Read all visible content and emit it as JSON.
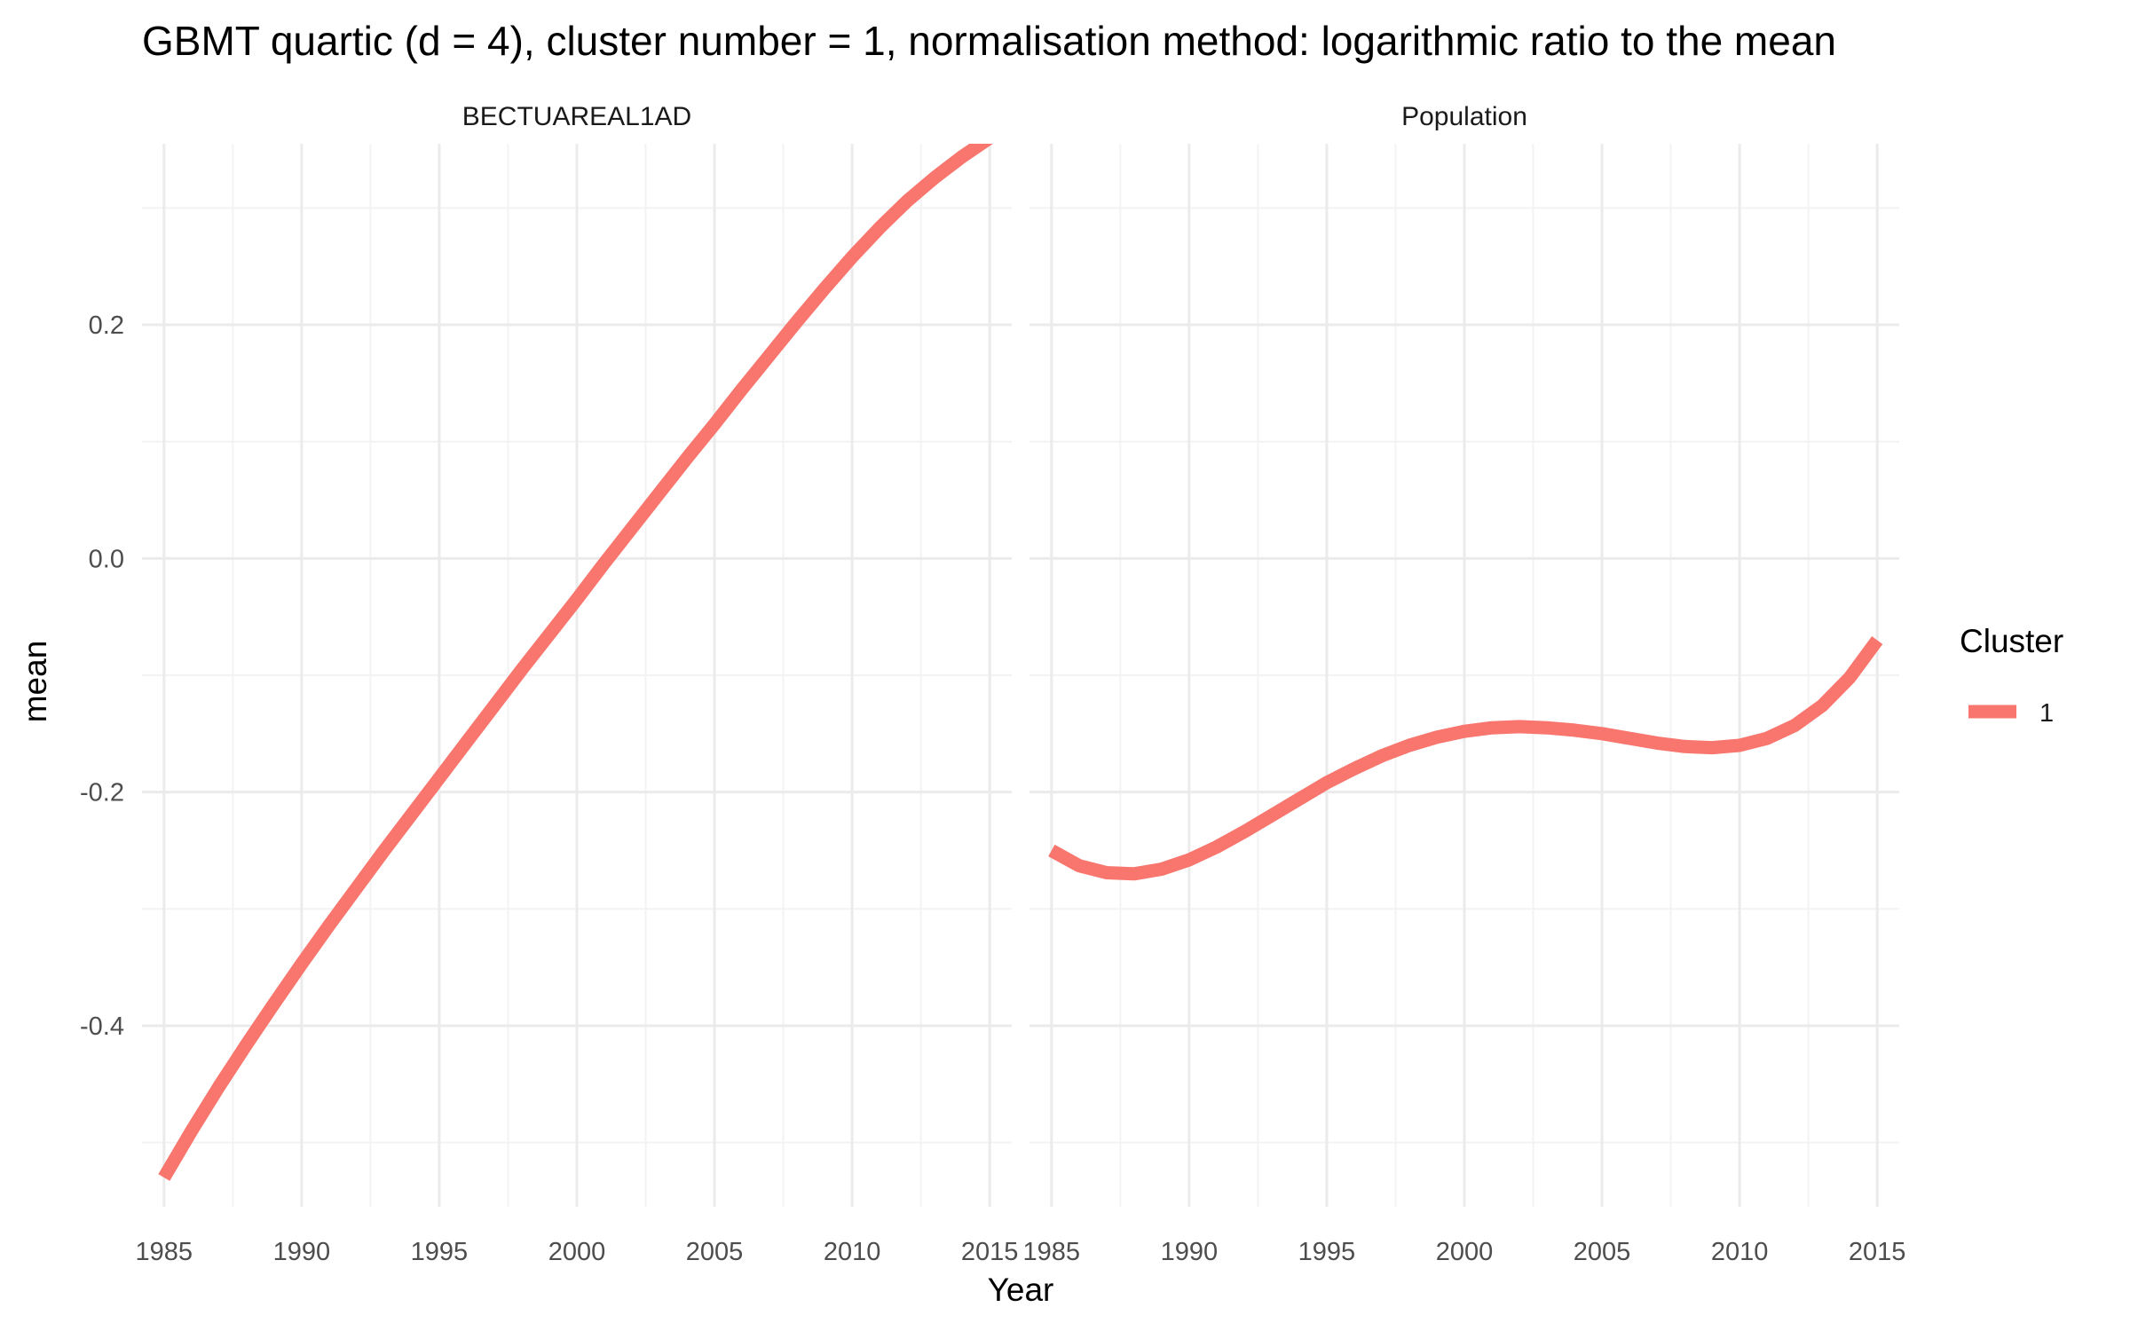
{
  "chart_data": {
    "type": "line",
    "title": "GBMT quartic (d = 4), cluster number = 1, normalisation method: logarithmic ratio to the mean",
    "xlabel": "Year",
    "ylabel": "mean",
    "xlim": [
      1984.2,
      2015.8
    ],
    "ylim": [
      -0.555,
      0.355
    ],
    "x_ticks": [
      1985,
      1990,
      1995,
      2000,
      2005,
      2010,
      2015
    ],
    "y_ticks": [
      -0.4,
      -0.2,
      0.0,
      0.2
    ],
    "y_tick_labels": [
      "-0.4",
      "-0.2",
      "0.0",
      "0.2"
    ],
    "grid": true,
    "legend": {
      "title": "Cluster",
      "position": "right",
      "entries": [
        {
          "label": "1",
          "color": "#F8766D"
        }
      ]
    },
    "colors": {
      "series": "#F8766D"
    },
    "panels": [
      {
        "strip": "BECTUAREAL1AD",
        "series": [
          {
            "name": "1",
            "x": [
              1985,
              1986,
              1987,
              1988,
              1989,
              1990,
              1991,
              1992,
              1993,
              1994,
              1995,
              1996,
              1997,
              1998,
              1999,
              2000,
              2001,
              2002,
              2003,
              2004,
              2005,
              2006,
              2007,
              2008,
              2009,
              2010,
              2011,
              2012,
              2013,
              2014,
              2015
            ],
            "y": [
              -0.53,
              -0.49,
              -0.452,
              -0.416,
              -0.381,
              -0.347,
              -0.314,
              -0.282,
              -0.25,
              -0.219,
              -0.188,
              -0.157,
              -0.126,
              -0.095,
              -0.065,
              -0.035,
              -0.004,
              0.026,
              0.056,
              0.086,
              0.115,
              0.145,
              0.174,
              0.203,
              0.231,
              0.258,
              0.283,
              0.306,
              0.326,
              0.344,
              0.36
            ]
          }
        ]
      },
      {
        "strip": "Population",
        "series": [
          {
            "name": "1",
            "x": [
              1985,
              1986,
              1987,
              1988,
              1989,
              1990,
              1991,
              1992,
              1993,
              1994,
              1995,
              1996,
              1997,
              1998,
              1999,
              2000,
              2001,
              2002,
              2003,
              2004,
              2005,
              2006,
              2007,
              2008,
              2009,
              2010,
              2011,
              2012,
              2013,
              2014,
              2015
            ],
            "y": [
              -0.25,
              -0.263,
              -0.269,
              -0.27,
              -0.266,
              -0.258,
              -0.247,
              -0.234,
              -0.22,
              -0.206,
              -0.192,
              -0.18,
              -0.169,
              -0.16,
              -0.153,
              -0.148,
              -0.145,
              -0.144,
              -0.145,
              -0.147,
              -0.15,
              -0.154,
              -0.158,
              -0.161,
              -0.162,
              -0.16,
              -0.154,
              -0.143,
              -0.126,
              -0.102,
              -0.07
            ]
          }
        ]
      }
    ]
  }
}
